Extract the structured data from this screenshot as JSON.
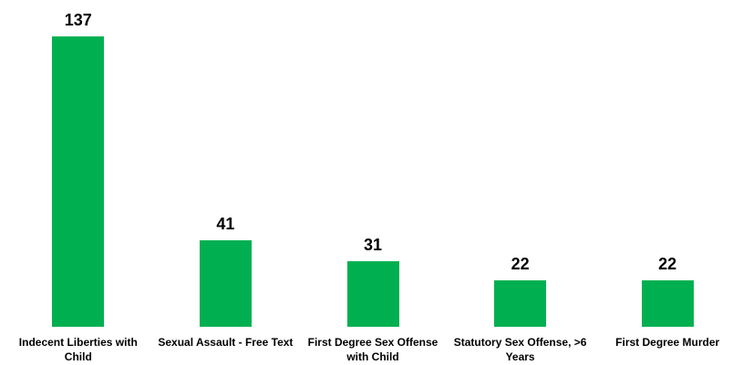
{
  "chart_data": {
    "type": "bar",
    "categories": [
      "Indecent Liberties with Child",
      "Sexual Assault - Free Text",
      "First Degree Sex Offense with Child",
      "Statutory Sex Offense, >6 Years",
      "First Degree Murder"
    ],
    "values": [
      137,
      41,
      31,
      22,
      22
    ],
    "color": "#00b050"
  }
}
